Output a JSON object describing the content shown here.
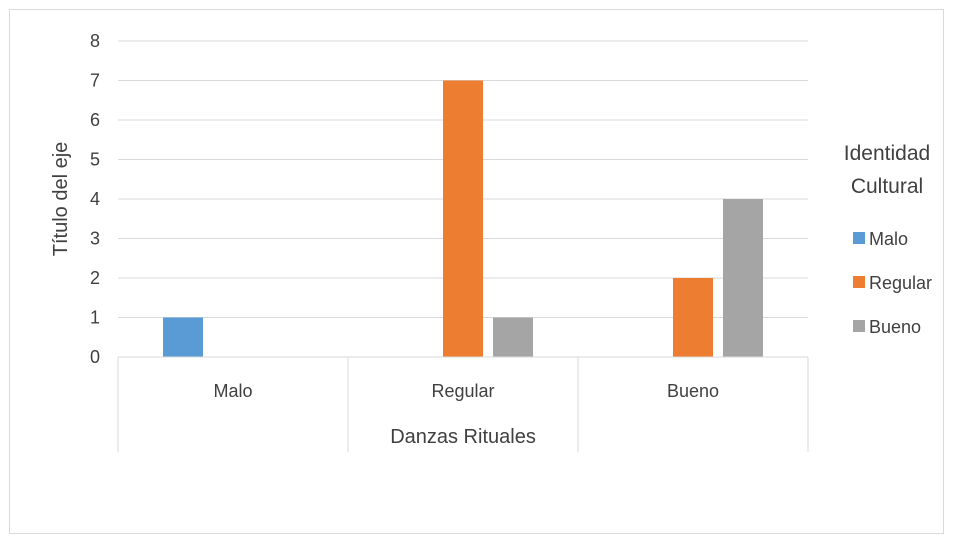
{
  "chart_data": {
    "type": "bar",
    "title": "",
    "xlabel": "Danzas Rituales",
    "ylabel": "Título del eje",
    "categories": [
      "Malo",
      "Regular",
      "Bueno"
    ],
    "series": [
      {
        "name": "Malo",
        "values": [
          1,
          0,
          0
        ],
        "color": "#5B9BD5"
      },
      {
        "name": "Regular",
        "values": [
          0,
          7,
          2
        ],
        "color": "#ED7D31"
      },
      {
        "name": "Bueno",
        "values": [
          0,
          1,
          4
        ],
        "color": "#A5A5A5"
      }
    ],
    "ylim": [
      0,
      8
    ],
    "yticks": [
      "0",
      "1",
      "2",
      "3",
      "4",
      "5",
      "6",
      "7",
      "8"
    ],
    "grid": true,
    "legend": {
      "title_lines": [
        "Identidad",
        "Cultural"
      ],
      "position": "right"
    }
  }
}
